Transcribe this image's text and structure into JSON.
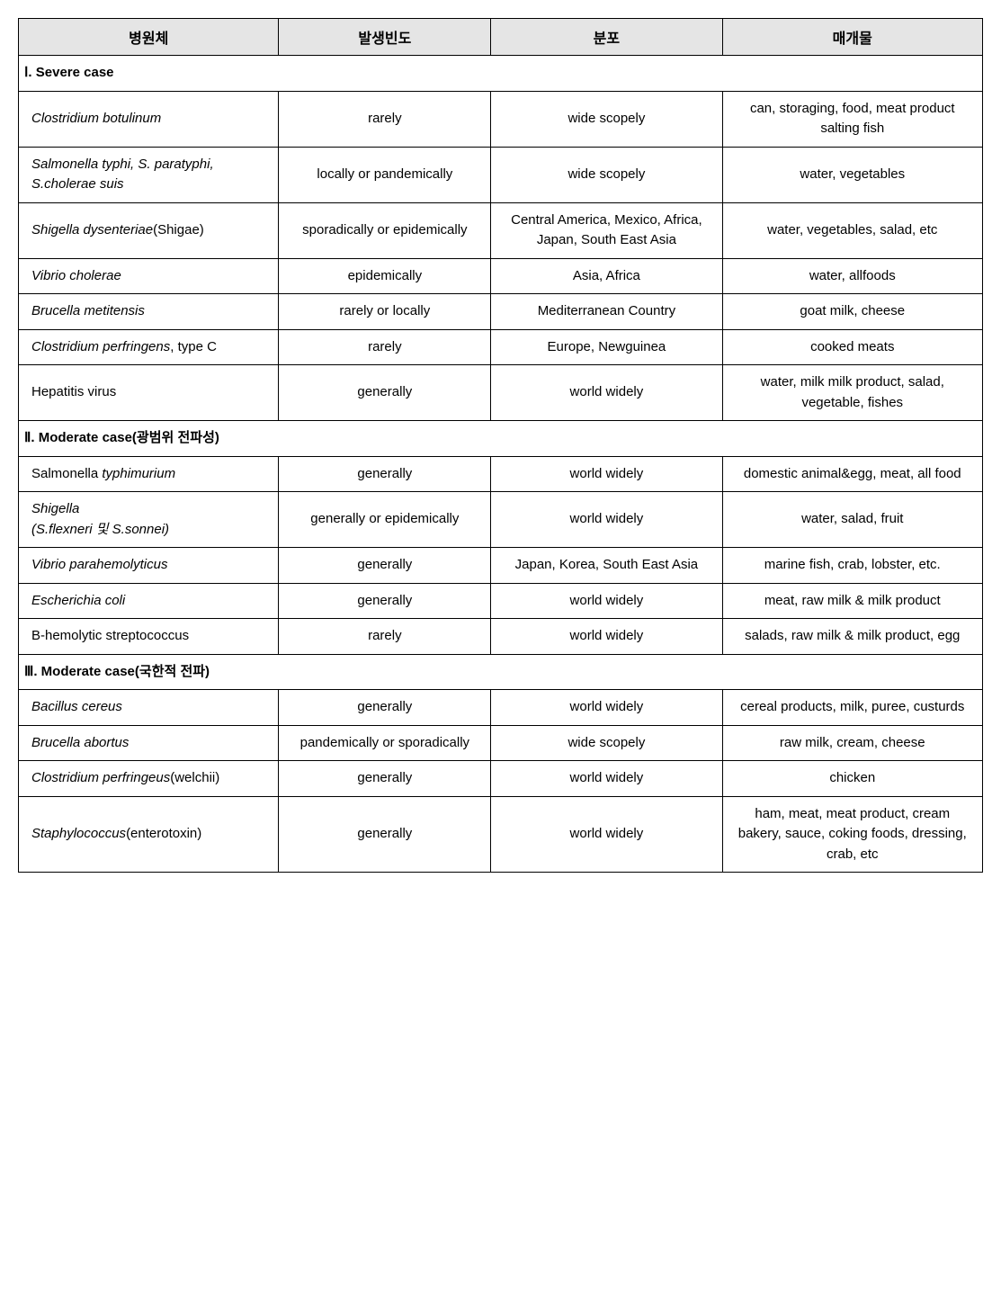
{
  "table": {
    "type": "table",
    "columns": [
      {
        "key": "pathogen",
        "label": "병원체",
        "width_pct": 27,
        "align": "left"
      },
      {
        "key": "freq",
        "label": "발생빈도",
        "width_pct": 22,
        "align": "center"
      },
      {
        "key": "dist",
        "label": "분포",
        "width_pct": 24,
        "align": "center"
      },
      {
        "key": "vehicle",
        "label": "매개물",
        "width_pct": 27,
        "align": "center"
      }
    ],
    "header_bg": "#e5e5e5",
    "border_color": "#000000",
    "font_family": "Malgun Gothic",
    "font_size_pt": 11,
    "sections": [
      {
        "title": "Ⅰ. Severe case",
        "rows": [
          {
            "pathogen_segments": [
              {
                "text": "Clostridium botulinum",
                "italic": true
              }
            ],
            "freq": "rarely",
            "dist": "wide scopely",
            "vehicle": "can, storaging, food, meat product salting fish"
          },
          {
            "pathogen_segments": [
              {
                "text": "Salmonella typhi, S. paratyphi, S.cholerae suis",
                "italic": true
              }
            ],
            "freq": "locally or pandemically",
            "dist": "wide scopely",
            "vehicle": "water, vegetables"
          },
          {
            "pathogen_segments": [
              {
                "text": "Shigella dysenteriae",
                "italic": true
              },
              {
                "text": "(Shigae)",
                "italic": false
              }
            ],
            "freq": "sporadically or epidemically",
            "dist": "Central America, Mexico, Africa, Japan, South East Asia",
            "vehicle": "water, vegetables, salad, etc"
          },
          {
            "pathogen_segments": [
              {
                "text": "Vibrio cholerae",
                "italic": true
              }
            ],
            "freq": "epidemically",
            "dist": "Asia, Africa",
            "vehicle": "water, allfoods"
          },
          {
            "pathogen_segments": [
              {
                "text": "Brucella metitensis",
                "italic": true
              }
            ],
            "freq": "rarely or locally",
            "dist": "Mediterranean Country",
            "vehicle": "goat milk, cheese"
          },
          {
            "pathogen_segments": [
              {
                "text": "Clostridium perfringens",
                "italic": true
              },
              {
                "text": ", type C",
                "italic": false
              }
            ],
            "freq": "rarely",
            "dist": "Europe, Newguinea",
            "vehicle": "cooked meats"
          },
          {
            "pathogen_segments": [
              {
                "text": "Hepatitis virus",
                "italic": false
              }
            ],
            "freq": "generally",
            "dist": "world widely",
            "vehicle": "water, milk milk product, salad, vegetable, fishes"
          }
        ]
      },
      {
        "title": "Ⅱ. Moderate case(광범위 전파성)",
        "rows": [
          {
            "pathogen_segments": [
              {
                "text": "Salmonella ",
                "italic": false
              },
              {
                "text": "typhimurium",
                "italic": true
              }
            ],
            "freq": "generally",
            "dist": "world widely",
            "vehicle": "domestic animal&egg, meat, all food"
          },
          {
            "pathogen_segments": [
              {
                "text": "Shigella",
                "italic": true
              },
              {
                "text": "\n",
                "italic": false
              },
              {
                "text": "(S.flexneri 및 S.sonnei)",
                "italic": true
              }
            ],
            "freq": "generally or epidemically",
            "dist": "world widely",
            "vehicle": "water, salad, fruit"
          },
          {
            "pathogen_segments": [
              {
                "text": "Vibrio parahemolyticus",
                "italic": true
              }
            ],
            "freq": "generally",
            "dist": "Japan, Korea, South East Asia",
            "vehicle": "marine fish, crab, lobster, etc."
          },
          {
            "pathogen_segments": [
              {
                "text": "Escherichia coli",
                "italic": true
              }
            ],
            "freq": "generally",
            "dist": "world widely",
            "vehicle": "meat, raw milk & milk product"
          },
          {
            "pathogen_segments": [
              {
                "text": "B-hemolytic streptococcus",
                "italic": false
              }
            ],
            "freq": "rarely",
            "dist": "world widely",
            "vehicle": "salads, raw milk & milk product, egg"
          }
        ]
      },
      {
        "title": "Ⅲ. Moderate case(국한적 전파)",
        "rows": [
          {
            "pathogen_segments": [
              {
                "text": "Bacillus cereus",
                "italic": true
              }
            ],
            "freq": "generally",
            "dist": "world widely",
            "vehicle": "cereal products, milk, puree, custurds"
          },
          {
            "pathogen_segments": [
              {
                "text": "Brucella abortus",
                "italic": true
              }
            ],
            "freq": "pandemically or sporadically",
            "dist": "wide scopely",
            "vehicle": "raw milk, cream, cheese"
          },
          {
            "pathogen_segments": [
              {
                "text": "Clostridium perfringeus",
                "italic": true
              },
              {
                "text": "(welchii)",
                "italic": false
              }
            ],
            "freq": "generally",
            "dist": "world widely",
            "vehicle": "chicken"
          },
          {
            "pathogen_segments": [
              {
                "text": "Staphylococcus",
                "italic": true
              },
              {
                "text": "(enterotoxin)",
                "italic": false
              }
            ],
            "freq": "generally",
            "dist": "world widely",
            "vehicle": "ham, meat, meat product, cream bakery, sauce, coking foods, dressing, crab, etc"
          }
        ]
      }
    ]
  }
}
